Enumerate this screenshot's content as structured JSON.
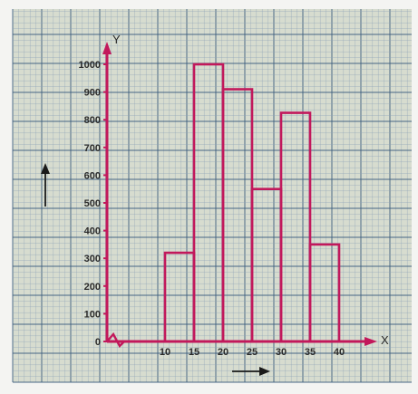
{
  "chart_data": {
    "type": "bar",
    "chart_style": "histogram",
    "x_bins": [
      [
        10,
        15
      ],
      [
        15,
        20
      ],
      [
        20,
        25
      ],
      [
        25,
        30
      ],
      [
        30,
        35
      ],
      [
        35,
        40
      ]
    ],
    "values": [
      320,
      1000,
      910,
      550,
      825,
      350
    ],
    "x_ticks": [
      "10",
      "15",
      "20",
      "25",
      "30",
      "35",
      "40"
    ],
    "y_ticks": [
      "0",
      "100",
      "200",
      "300",
      "400",
      "500",
      "600",
      "700",
      "800",
      "900",
      "1000"
    ],
    "x_axis_letter": "X",
    "y_axis_letter": "Y",
    "xlabel": "",
    "ylabel": "",
    "ylim": [
      0,
      1100
    ],
    "xlim": [
      0,
      45
    ],
    "grid": "graph paper",
    "x_axis_break": true,
    "colors": {
      "axis": "#c2185b",
      "bars": "#c2185b",
      "paper": "#d7dccf",
      "grid_fine": "#8fa3b8",
      "grid_major": "#3f5f80",
      "tick_text": "#2a2a2a"
    }
  }
}
